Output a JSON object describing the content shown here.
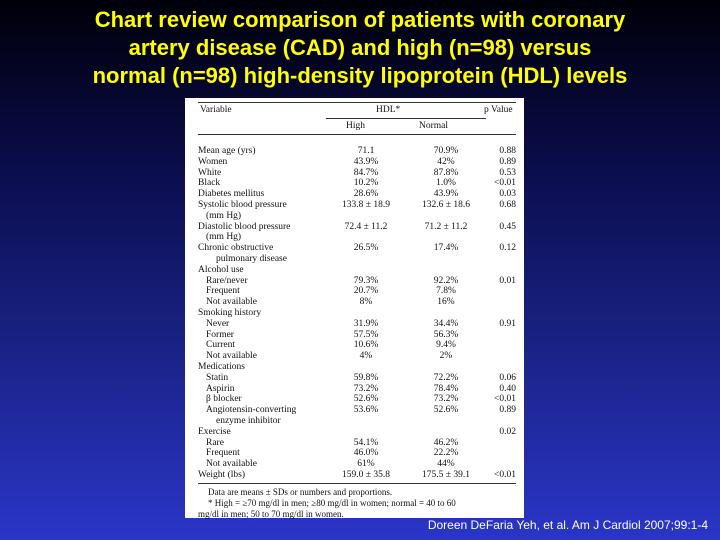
{
  "slide": {
    "title_lines": [
      "Chart review comparison of patients with coronary",
      "artery disease (CAD) and high (n=98) versus",
      "normal (n=98) high-density lipoprotein (HDL) levels"
    ],
    "citation": "Doreen DeFaria Yeh, et al. Am J Cardiol 2007;99:1-4"
  },
  "table": {
    "headers": {
      "variable": "Variable",
      "group": "HDL*",
      "high": "High",
      "normal": "Normal",
      "p_value": "p Value"
    },
    "rows": [
      {
        "label": "Mean age (yrs)",
        "high": "71.1",
        "normal": "70.9%",
        "p": "0.88",
        "indent": 0
      },
      {
        "label": "Women",
        "high": "43.9%",
        "normal": "42%",
        "p": "0.89",
        "indent": 0
      },
      {
        "label": "White",
        "high": "84.7%",
        "normal": "87.8%",
        "p": "0.53",
        "indent": 0
      },
      {
        "label": "Black",
        "high": "10.2%",
        "normal": "1.0%",
        "p": "<0.01",
        "indent": 0
      },
      {
        "label": "Diabetes mellitus",
        "high": "28.6%",
        "normal": "43.9%",
        "p": "0.03",
        "indent": 0
      },
      {
        "label": "Systolic blood pressure",
        "high": "133.8 ± 18.9",
        "normal": "132.6 ± 18.6",
        "p": "0.68",
        "indent": 0
      },
      {
        "label": "(mm Hg)",
        "high": "",
        "normal": "",
        "p": "",
        "indent": 1
      },
      {
        "label": "Diastolic blood pressure",
        "high": "72.4 ± 11.2",
        "normal": "71.2 ± 11.2",
        "p": "0.45",
        "indent": 0
      },
      {
        "label": "(mm Hg)",
        "high": "",
        "normal": "",
        "p": "",
        "indent": 1
      },
      {
        "label": "Chronic obstructive",
        "high": "26.5%",
        "normal": "17.4%",
        "p": "0.12",
        "indent": 0
      },
      {
        "label": "pulmonary disease",
        "high": "",
        "normal": "",
        "p": "",
        "indent": 2
      },
      {
        "label": "Alcohol use",
        "high": "",
        "normal": "",
        "p": "",
        "indent": 0
      },
      {
        "label": "Rare/never",
        "high": "79.3%",
        "normal": "92.2%",
        "p": "0.01",
        "indent": 1
      },
      {
        "label": "Frequent",
        "high": "20.7%",
        "normal": "7.8%",
        "p": "",
        "indent": 1
      },
      {
        "label": "Not available",
        "high": "8%",
        "normal": "16%",
        "p": "",
        "indent": 1
      },
      {
        "label": "Smoking history",
        "high": "",
        "normal": "",
        "p": "",
        "indent": 0
      },
      {
        "label": "Never",
        "high": "31.9%",
        "normal": "34.4%",
        "p": "0.91",
        "indent": 1
      },
      {
        "label": "Former",
        "high": "57.5%",
        "normal": "56.3%",
        "p": "",
        "indent": 1
      },
      {
        "label": "Current",
        "high": "10.6%",
        "normal": "9.4%",
        "p": "",
        "indent": 1
      },
      {
        "label": "Not available",
        "high": "4%",
        "normal": "2%",
        "p": "",
        "indent": 1
      },
      {
        "label": "Medications",
        "high": "",
        "normal": "",
        "p": "",
        "indent": 0
      },
      {
        "label": "Statin",
        "high": "59.8%",
        "normal": "72.2%",
        "p": "0.06",
        "indent": 1
      },
      {
        "label": "Aspirin",
        "high": "73.2%",
        "normal": "78.4%",
        "p": "0.40",
        "indent": 1
      },
      {
        "label": "β blocker",
        "high": "52.6%",
        "normal": "73.2%",
        "p": "<0.01",
        "indent": 1
      },
      {
        "label": "Angiotensin-converting",
        "high": "53.6%",
        "normal": "52.6%",
        "p": "0.89",
        "indent": 1
      },
      {
        "label": "enzyme inhibitor",
        "high": "",
        "normal": "",
        "p": "",
        "indent": 2
      },
      {
        "label": "Exercise",
        "high": "",
        "normal": "",
        "p": "0.02",
        "indent": 0
      },
      {
        "label": "Rare",
        "high": "54.1%",
        "normal": "46.2%",
        "p": "",
        "indent": 1
      },
      {
        "label": "Frequent",
        "high": "46.0%",
        "normal": "22.2%",
        "p": "",
        "indent": 1
      },
      {
        "label": "Not available",
        "high": "61%",
        "normal": "44%",
        "p": "",
        "indent": 1
      },
      {
        "label": "Weight (lbs)",
        "high": "159.0 ± 35.8",
        "normal": "175.5 ± 39.1",
        "p": "<0.01",
        "indent": 0
      }
    ],
    "notes": [
      "Data are means ± SDs or numbers and proportions.",
      "* High = ≥70 mg/dl in men; ≥80 mg/dl in women; normal = 40 to 60",
      "mg/dl in men; 50 to 70 mg/dl in women."
    ]
  }
}
